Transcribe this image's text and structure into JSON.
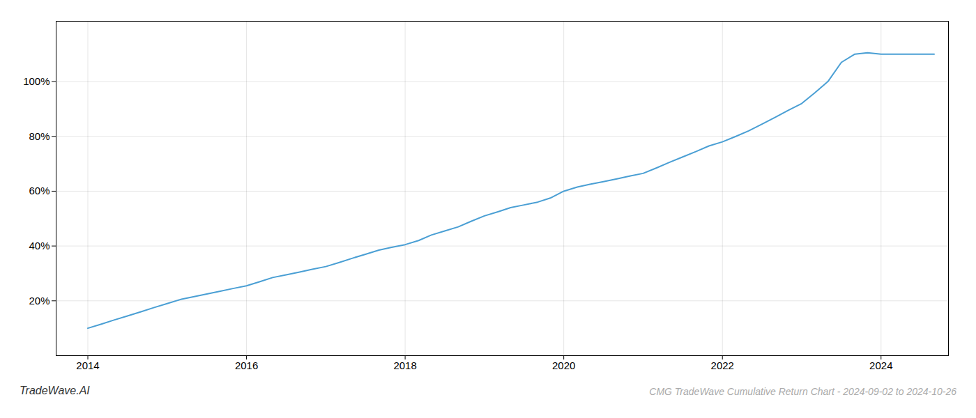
{
  "chart_data": {
    "type": "line",
    "title": "CMG TradeWave Cumulative Return Chart - 2024-09-02 to 2024-10-26",
    "annotations": [
      "TradeWave.AI"
    ],
    "color": "#4a9fd4",
    "grid": true,
    "x": [
      2014.0,
      2014.17,
      2014.33,
      2014.5,
      2014.67,
      2014.83,
      2015.0,
      2015.17,
      2015.33,
      2015.5,
      2015.67,
      2015.83,
      2016.0,
      2016.17,
      2016.33,
      2016.5,
      2016.67,
      2016.83,
      2017.0,
      2017.17,
      2017.33,
      2017.5,
      2017.67,
      2017.83,
      2018.0,
      2018.17,
      2018.33,
      2018.5,
      2018.67,
      2018.83,
      2019.0,
      2019.17,
      2019.33,
      2019.5,
      2019.67,
      2019.83,
      2020.0,
      2020.17,
      2020.33,
      2020.5,
      2020.67,
      2020.83,
      2021.0,
      2021.17,
      2021.33,
      2021.5,
      2021.67,
      2021.83,
      2022.0,
      2022.17,
      2022.33,
      2022.5,
      2022.67,
      2022.83,
      2023.0,
      2023.17,
      2023.33,
      2023.5,
      2023.67,
      2023.83,
      2024.0,
      2024.17,
      2024.5,
      2024.67
    ],
    "values": [
      0.1,
      0.115,
      0.13,
      0.145,
      0.16,
      0.175,
      0.19,
      0.205,
      0.215,
      0.225,
      0.235,
      0.245,
      0.255,
      0.27,
      0.285,
      0.295,
      0.305,
      0.315,
      0.325,
      0.34,
      0.355,
      0.37,
      0.385,
      0.395,
      0.405,
      0.42,
      0.44,
      0.455,
      0.47,
      0.49,
      0.51,
      0.525,
      0.54,
      0.55,
      0.56,
      0.575,
      0.6,
      0.615,
      0.625,
      0.635,
      0.645,
      0.655,
      0.665,
      0.685,
      0.705,
      0.725,
      0.745,
      0.765,
      0.78,
      0.8,
      0.82,
      0.845,
      0.87,
      0.895,
      0.92,
      0.96,
      1.0,
      1.07,
      1.1,
      1.105,
      1.1,
      1.1,
      1.1,
      1.1
    ],
    "xlim": [
      2013.6,
      2024.85
    ],
    "xticks": [
      2014,
      2016,
      2018,
      2020,
      2022,
      2024
    ],
    "ylim": [
      0.0,
      1.22
    ],
    "yticks": [
      {
        "value": 0.2,
        "label": "20%"
      },
      {
        "value": 0.4,
        "label": "40%"
      },
      {
        "value": 0.6,
        "label": "60%"
      },
      {
        "value": 0.8,
        "label": "80%"
      },
      {
        "value": 1.0,
        "label": "100%"
      }
    ]
  }
}
